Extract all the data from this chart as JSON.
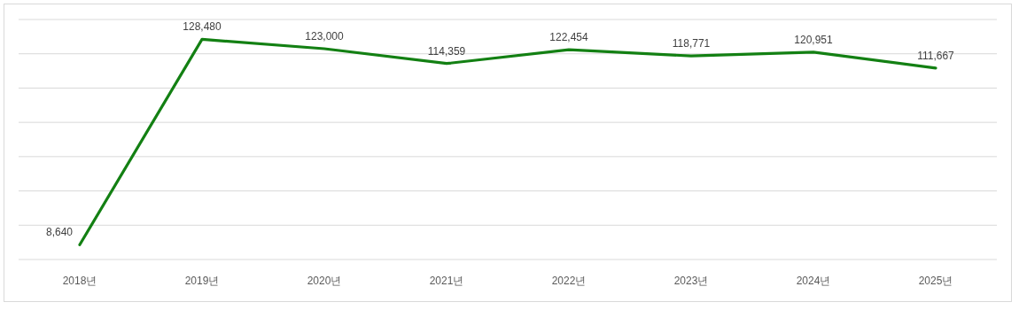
{
  "chart_data": {
    "type": "line",
    "categories": [
      "2018년",
      "2019년",
      "2020년",
      "2021년",
      "2022년",
      "2023년",
      "2024년",
      "2025년"
    ],
    "series": [
      {
        "color": "#138013",
        "values": [
          8640,
          128480,
          123000,
          114359,
          122454,
          118771,
          120951,
          111667
        ],
        "value_labels": [
          "8,640",
          "128,480",
          "123,000",
          "114,359",
          "122,454",
          "118,771",
          "120,951",
          "111,667"
        ]
      }
    ],
    "grid": "y",
    "marker": "none",
    "line_style": "solid"
  }
}
